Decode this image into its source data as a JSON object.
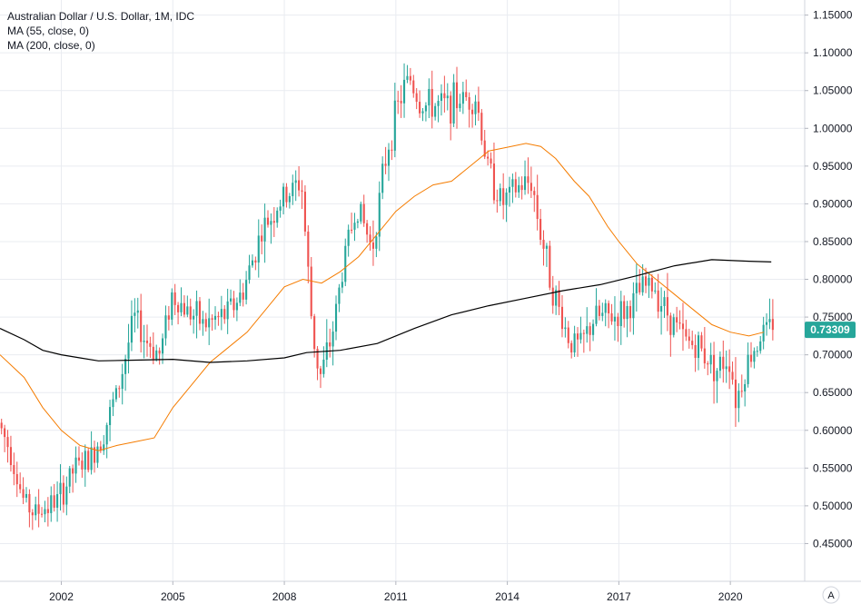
{
  "legend": {
    "title": "Australian Dollar / U.S. Dollar, 1M, IDC",
    "ma55": "MA (55, close, 0)",
    "ma200": "MA (200, close, 0)"
  },
  "price_badge": "0.73309",
  "settings_button": "A",
  "colors": {
    "up": "#26a69a",
    "down": "#ef5350",
    "ma55": "#f57c00",
    "ma200": "#000000",
    "grid": "#e9ecf1",
    "badge": "#26a69a"
  },
  "chart_data": {
    "type": "candlestick",
    "title": "Australian Dollar / U.S. Dollar, 1M, IDC",
    "x_ticks": [
      "2002",
      "2005",
      "2008",
      "2011",
      "2014",
      "2017",
      "2020"
    ],
    "y_ticks": [
      "0.45000",
      "0.50000",
      "0.55000",
      "0.60000",
      "0.65000",
      "0.70000",
      "0.75000",
      "0.80000",
      "0.85000",
      "0.90000",
      "0.95000",
      "1.00000",
      "1.05000",
      "1.10000",
      "1.15000"
    ],
    "ylim": [
      0.4,
      1.17
    ],
    "xlim": [
      2000.35,
      2022.0
    ],
    "last_price": 0.73309,
    "anchors": [
      [
        2000.35,
        0.61
      ],
      [
        2000.7,
        0.57
      ],
      [
        2001.0,
        0.51
      ],
      [
        2001.3,
        0.49
      ],
      [
        2001.7,
        0.5
      ],
      [
        2002.0,
        0.51
      ],
      [
        2002.4,
        0.55
      ],
      [
        2002.8,
        0.56
      ],
      [
        2003.2,
        0.6
      ],
      [
        2003.6,
        0.66
      ],
      [
        2004.0,
        0.75
      ],
      [
        2004.3,
        0.72
      ],
      [
        2004.7,
        0.7
      ],
      [
        2005.0,
        0.78
      ],
      [
        2005.4,
        0.76
      ],
      [
        2005.9,
        0.74
      ],
      [
        2006.4,
        0.75
      ],
      [
        2006.9,
        0.78
      ],
      [
        2007.4,
        0.86
      ],
      [
        2007.9,
        0.9
      ],
      [
        2008.5,
        0.93
      ],
      [
        2008.8,
        0.73
      ],
      [
        2009.0,
        0.67
      ],
      [
        2009.3,
        0.72
      ],
      [
        2009.7,
        0.84
      ],
      [
        2010.0,
        0.9
      ],
      [
        2010.4,
        0.84
      ],
      [
        2010.8,
        0.97
      ],
      [
        2011.1,
        1.03
      ],
      [
        2011.4,
        1.07
      ],
      [
        2011.7,
        1.03
      ],
      [
        2012.0,
        1.03
      ],
      [
        2012.4,
        1.03
      ],
      [
        2012.8,
        1.04
      ],
      [
        2013.2,
        1.04
      ],
      [
        2013.5,
        0.95
      ],
      [
        2013.9,
        0.9
      ],
      [
        2014.3,
        0.92
      ],
      [
        2014.7,
        0.93
      ],
      [
        2014.9,
        0.87
      ],
      [
        2015.3,
        0.78
      ],
      [
        2015.7,
        0.72
      ],
      [
        2016.0,
        0.71
      ],
      [
        2016.4,
        0.75
      ],
      [
        2016.9,
        0.75
      ],
      [
        2017.3,
        0.76
      ],
      [
        2017.7,
        0.79
      ],
      [
        2018.0,
        0.79
      ],
      [
        2018.3,
        0.76
      ],
      [
        2018.8,
        0.72
      ],
      [
        2019.2,
        0.71
      ],
      [
        2019.7,
        0.68
      ],
      [
        2020.0,
        0.7
      ],
      [
        2020.2,
        0.64
      ],
      [
        2020.5,
        0.69
      ],
      [
        2020.9,
        0.73
      ],
      [
        2021.1,
        0.733
      ]
    ],
    "ma55": [
      [
        2000.35,
        0.7
      ],
      [
        2001.0,
        0.67
      ],
      [
        2001.5,
        0.63
      ],
      [
        2002.0,
        0.6
      ],
      [
        2002.5,
        0.58
      ],
      [
        2003.0,
        0.573
      ],
      [
        2003.5,
        0.58
      ],
      [
        2004.0,
        0.585
      ],
      [
        2004.5,
        0.59
      ],
      [
        2005.0,
        0.63
      ],
      [
        2005.5,
        0.66
      ],
      [
        2006.0,
        0.69
      ],
      [
        2006.5,
        0.71
      ],
      [
        2007.0,
        0.73
      ],
      [
        2007.5,
        0.76
      ],
      [
        2008.0,
        0.79
      ],
      [
        2008.5,
        0.8
      ],
      [
        2009.0,
        0.795
      ],
      [
        2009.5,
        0.81
      ],
      [
        2010.0,
        0.83
      ],
      [
        2010.5,
        0.86
      ],
      [
        2011.0,
        0.89
      ],
      [
        2011.5,
        0.91
      ],
      [
        2012.0,
        0.925
      ],
      [
        2012.5,
        0.93
      ],
      [
        2013.0,
        0.95
      ],
      [
        2013.5,
        0.97
      ],
      [
        2014.0,
        0.975
      ],
      [
        2014.5,
        0.98
      ],
      [
        2014.9,
        0.976
      ],
      [
        2015.3,
        0.96
      ],
      [
        2015.8,
        0.93
      ],
      [
        2016.2,
        0.91
      ],
      [
        2016.7,
        0.87
      ],
      [
        2017.0,
        0.85
      ],
      [
        2017.5,
        0.82
      ],
      [
        2018.0,
        0.8
      ],
      [
        2018.5,
        0.78
      ],
      [
        2019.0,
        0.76
      ],
      [
        2019.5,
        0.74
      ],
      [
        2020.0,
        0.73
      ],
      [
        2020.5,
        0.725
      ],
      [
        2020.9,
        0.73
      ]
    ],
    "ma200": [
      [
        2000.35,
        0.735
      ],
      [
        2001.0,
        0.72
      ],
      [
        2001.5,
        0.706
      ],
      [
        2002.0,
        0.7
      ],
      [
        2002.5,
        0.696
      ],
      [
        2003.0,
        0.692
      ],
      [
        2004.0,
        0.693
      ],
      [
        2005.0,
        0.694
      ],
      [
        2006.0,
        0.69
      ],
      [
        2007.0,
        0.692
      ],
      [
        2008.0,
        0.696
      ],
      [
        2008.6,
        0.703
      ],
      [
        2009.5,
        0.706
      ],
      [
        2010.5,
        0.715
      ],
      [
        2011.5,
        0.735
      ],
      [
        2012.5,
        0.753
      ],
      [
        2013.5,
        0.765
      ],
      [
        2014.5,
        0.775
      ],
      [
        2015.5,
        0.785
      ],
      [
        2016.5,
        0.793
      ],
      [
        2017.5,
        0.805
      ],
      [
        2018.5,
        0.818
      ],
      [
        2019.5,
        0.826
      ],
      [
        2020.5,
        0.824
      ],
      [
        2021.1,
        0.823
      ]
    ]
  }
}
